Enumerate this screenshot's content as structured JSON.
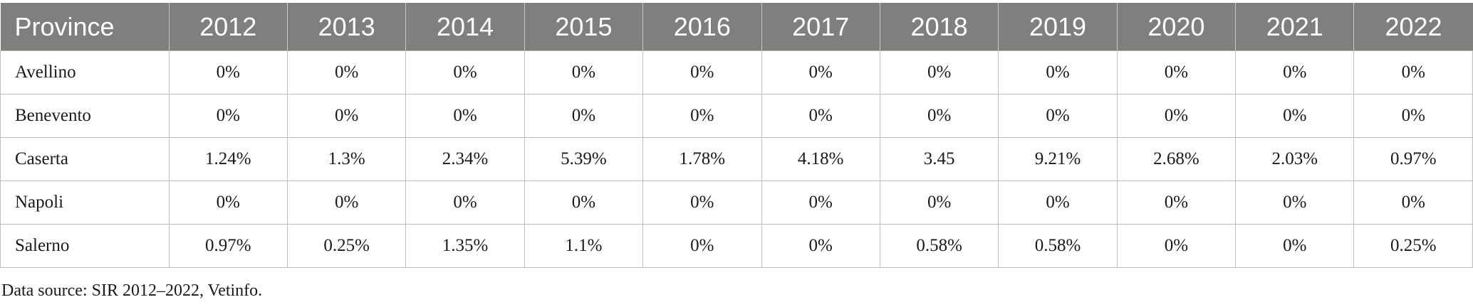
{
  "table": {
    "columns": [
      "Province",
      "2012",
      "2013",
      "2014",
      "2015",
      "2016",
      "2017",
      "2018",
      "2019",
      "2020",
      "2021",
      "2022"
    ],
    "rows": [
      [
        "Avellino",
        "0%",
        "0%",
        "0%",
        "0%",
        "0%",
        "0%",
        "0%",
        "0%",
        "0%",
        "0%",
        "0%"
      ],
      [
        "Benevento",
        "0%",
        "0%",
        "0%",
        "0%",
        "0%",
        "0%",
        "0%",
        "0%",
        "0%",
        "0%",
        "0%"
      ],
      [
        "Caserta",
        "1.24%",
        "1.3%",
        "2.34%",
        "5.39%",
        "1.78%",
        "4.18%",
        "3.45",
        "9.21%",
        "2.68%",
        "2.03%",
        "0.97%"
      ],
      [
        "Napoli",
        "0%",
        "0%",
        "0%",
        "0%",
        "0%",
        "0%",
        "0%",
        "0%",
        "0%",
        "0%",
        "0%"
      ],
      [
        "Salerno",
        "0.97%",
        "0.25%",
        "1.35%",
        "1.1%",
        "0%",
        "0%",
        "0.58%",
        "0.58%",
        "0%",
        "0%",
        "0.25%"
      ]
    ]
  },
  "source_note": "Data source: SIR 2012–2022, Vetinfo.",
  "colors": {
    "header_bg": "#7f7f7e",
    "header_text": "#ffffff",
    "grid": "#bdbdbd"
  }
}
